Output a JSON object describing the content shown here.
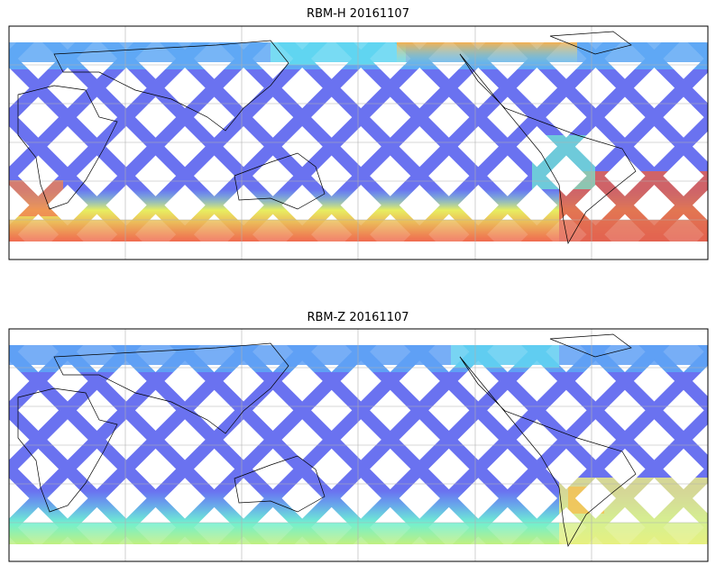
{
  "panels": [
    {
      "title": "RBM-H 20161107"
    },
    {
      "title": "RBM-Z 20161107"
    }
  ]
}
